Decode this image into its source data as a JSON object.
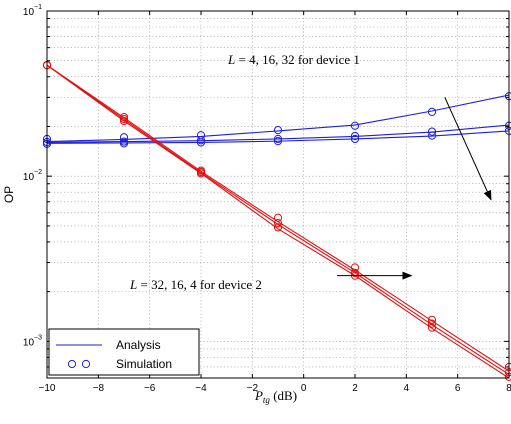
{
  "chart_data": {
    "type": "line",
    "xlabel": "P_tg (dB)",
    "ylabel": "OP",
    "xlim": [
      -10,
      8
    ],
    "ylim": [
      0.0006,
      0.1
    ],
    "yscale": "log",
    "grid": true,
    "legend_placement": "bottom-left",
    "x_ticks": [
      -10,
      -8,
      -6,
      -4,
      -2,
      0,
      2,
      4,
      6,
      8
    ],
    "x_tick_labels": [
      "−10",
      "−8",
      "−6",
      "−4",
      "−2",
      "0",
      "2",
      "4",
      "6",
      "8"
    ],
    "y_ticks": [
      {
        "value": 0.1,
        "base": "10",
        "exp": "−1"
      },
      {
        "value": 0.01,
        "base": "10",
        "exp": "−2"
      },
      {
        "value": 0.001,
        "base": "10",
        "exp": "−3"
      }
    ],
    "legend": [
      {
        "label": "Analysis",
        "marker": "line"
      },
      {
        "label": "Simulation",
        "marker": "circle"
      }
    ],
    "annotations": [
      {
        "text": "L = 4, 16, 32 for device 1",
        "arrow_from": [
          5.5,
          0.03
        ],
        "arrow_to": [
          7.3,
          0.0072
        ]
      },
      {
        "text": "L = 32, 16, 4 for device 2",
        "arrow_from": [
          1.3,
          0.0025
        ],
        "arrow_to": [
          4.2,
          0.0025
        ]
      }
    ],
    "series": [
      {
        "group": "device 1",
        "L": 4,
        "color": "#1f1fd6",
        "x": [
          -10,
          -7,
          -4,
          -1,
          2,
          5,
          8
        ],
        "y": [
          0.0162,
          0.0167,
          0.0174,
          0.0188,
          0.0204,
          0.0248,
          0.031
        ]
      },
      {
        "group": "device 1",
        "L": 16,
        "color": "#1f1fd6",
        "x": [
          -10,
          -7,
          -4,
          -1,
          2,
          5,
          8
        ],
        "y": [
          0.016,
          0.0162,
          0.0164,
          0.0168,
          0.0174,
          0.0185,
          0.0204
        ]
      },
      {
        "group": "device 1",
        "L": 32,
        "color": "#1f1fd6",
        "x": [
          -10,
          -7,
          -4,
          -1,
          2,
          5,
          8
        ],
        "y": [
          0.0158,
          0.0159,
          0.016,
          0.0163,
          0.0168,
          0.0175,
          0.0188
        ]
      },
      {
        "group": "device 2",
        "L": 32,
        "color": "#e01010",
        "x": [
          -10,
          -7,
          -4,
          -1,
          2,
          5,
          8
        ],
        "y": [
          0.047,
          0.0226,
          0.0107,
          0.0053,
          0.0027,
          0.00133,
          0.00066
        ]
      },
      {
        "group": "device 2",
        "L": 16,
        "color": "#e01010",
        "x": [
          -10,
          -7,
          -4,
          -1,
          2,
          5,
          8
        ],
        "y": [
          0.047,
          0.0221,
          0.0105,
          0.0051,
          0.0026,
          0.00126,
          0.00063
        ]
      },
      {
        "group": "device 2",
        "L": 4,
        "color": "#e01010",
        "x": [
          -10,
          -7,
          -4,
          -1,
          2,
          5,
          8
        ],
        "y": [
          0.047,
          0.0216,
          0.0104,
          0.0048,
          0.0025,
          0.0012,
          0.0006
        ]
      }
    ],
    "simulation_points": [
      {
        "group": "device 1",
        "color": "#1f1fd6",
        "x": [
          -10,
          -7,
          -4,
          -1,
          2,
          5,
          8
        ],
        "y": [
          0.0168,
          0.0172,
          0.0177,
          0.019,
          0.0202,
          0.0245,
          0.0305
        ]
      },
      {
        "group": "device 1",
        "color": "#1f1fd6",
        "x": [
          -10,
          -7,
          -4,
          -1,
          2,
          5,
          8
        ],
        "y": [
          0.0161,
          0.0162,
          0.0165,
          0.0168,
          0.0175,
          0.0186,
          0.0202
        ]
      },
      {
        "group": "device 1",
        "color": "#1f1fd6",
        "x": [
          -10,
          -7,
          -4,
          -1,
          2,
          5,
          8
        ],
        "y": [
          0.0157,
          0.0158,
          0.016,
          0.0163,
          0.0168,
          0.0176,
          0.0188
        ]
      },
      {
        "group": "device 2",
        "color": "#e01010",
        "x": [
          -10,
          -7,
          -4,
          -1,
          2,
          5,
          8
        ],
        "y": [
          0.047,
          0.0228,
          0.0108,
          0.0056,
          0.0028,
          0.00135,
          0.0007
        ]
      },
      {
        "group": "device 2",
        "color": "#e01010",
        "x": [
          -10,
          -7,
          -4,
          -1,
          2,
          5,
          8
        ],
        "y": [
          0.047,
          0.0222,
          0.0106,
          0.0052,
          0.0026,
          0.00128,
          0.00065
        ]
      },
      {
        "group": "device 2",
        "color": "#e01010",
        "x": [
          -10,
          -7,
          -4,
          -1,
          2,
          5,
          8
        ],
        "y": [
          0.047,
          0.0216,
          0.0104,
          0.0049,
          0.0025,
          0.00121,
          0.00061
        ]
      }
    ]
  }
}
